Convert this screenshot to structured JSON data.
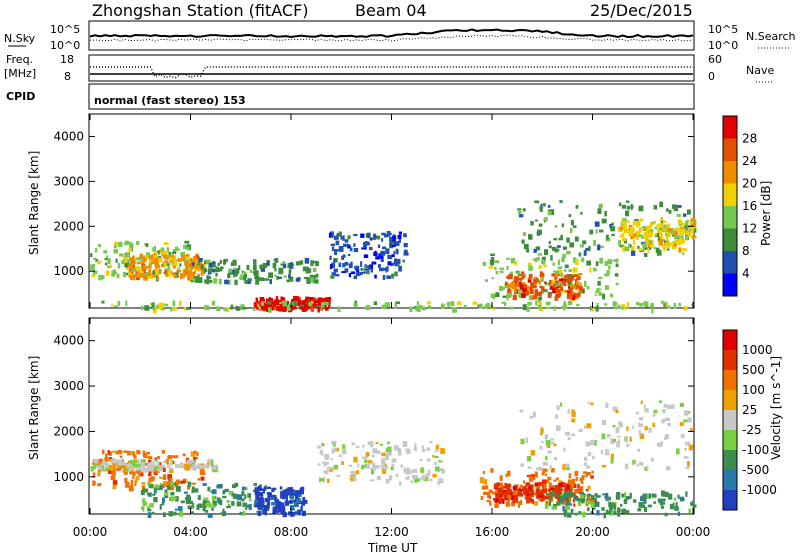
{
  "header": {
    "station": "Zhongshan Station (fitACF)",
    "beam": "Beam 04",
    "date": "25/Dec/2015"
  },
  "strip_labels": {
    "nsky": "N.Sky",
    "nsky_top": "10^5",
    "nsky_bottom": "10^0",
    "nsearch": "N.Search",
    "nsearch_top": "10^5",
    "nsearch_bottom": "10^0",
    "freq": "Freq.",
    "freq_unit": "[MHz]",
    "freq_top": "18",
    "freq_bottom": "8",
    "nave": "Nave",
    "nave_top": "60",
    "nave_bottom": "0",
    "cpid": "CPID",
    "cpid_value": "normal (fast stereo) 153"
  },
  "colors": {
    "power_scale": [
      "#0000ff",
      "#2050b0",
      "#3c8c3c",
      "#78c850",
      "#f0d000",
      "#f08c00",
      "#e05000",
      "#e00000"
    ],
    "velocity_scale": [
      "#2040c0",
      "#2878a8",
      "#3c8c50",
      "#78d040",
      "#c8c8c8",
      "#f0a000",
      "#f07000",
      "#e03000",
      "#e00000"
    ]
  },
  "chart_data": [
    {
      "type": "heatmap",
      "title": "",
      "ylabel": "Slant Range [km]",
      "xlabel": "Time UT",
      "ylim": [
        180,
        4500
      ],
      "xlim": [
        "00:00",
        "24:00"
      ],
      "x_ticks": [
        "00:00",
        "04:00",
        "08:00",
        "12:00",
        "16:00",
        "20:00",
        "00:00"
      ],
      "y_ticks": [
        1000,
        2000,
        3000,
        4000
      ],
      "colorbar": {
        "label": "Power [dB]",
        "ticks": [
          "4",
          "8",
          "12",
          "16",
          "20",
          "24",
          "28"
        ]
      },
      "blobs": [
        {
          "t0": 0.0,
          "t1": 4.0,
          "r0": 900,
          "r1": 1700,
          "level": 3
        },
        {
          "t0": 1.5,
          "t1": 4.5,
          "r0": 900,
          "r1": 1400,
          "level": 5
        },
        {
          "t0": 4.0,
          "t1": 9.0,
          "r0": 800,
          "r1": 1300,
          "level": 2
        },
        {
          "t0": 6.5,
          "t1": 9.5,
          "r0": 200,
          "r1": 450,
          "level": 7
        },
        {
          "t0": 9.5,
          "t1": 12.5,
          "r0": 900,
          "r1": 1900,
          "level": 1
        },
        {
          "t0": 15.5,
          "t1": 21.0,
          "r0": 400,
          "r1": 1400,
          "level": 3
        },
        {
          "t0": 16.5,
          "t1": 19.5,
          "r0": 450,
          "r1": 1000,
          "level": 6
        },
        {
          "t0": 17.0,
          "t1": 24.0,
          "r0": 1400,
          "r1": 2600,
          "level": 2
        },
        {
          "t0": 21.0,
          "t1": 24.0,
          "r0": 1500,
          "r1": 2200,
          "level": 4
        },
        {
          "t0": 0.0,
          "t1": 24.0,
          "r0": 180,
          "r1": 350,
          "level": 3
        }
      ]
    },
    {
      "type": "heatmap",
      "title": "",
      "ylabel": "Slant Range [km]",
      "xlabel": "Time UT",
      "ylim": [
        180,
        4500
      ],
      "xlim": [
        "00:00",
        "24:00"
      ],
      "x_ticks": [
        "00:00",
        "04:00",
        "08:00",
        "12:00",
        "16:00",
        "20:00",
        "00:00"
      ],
      "y_ticks": [
        1000,
        2000,
        3000,
        4000
      ],
      "colorbar": {
        "label": "Velocity [m s^-1]",
        "ticks": [
          "1000",
          "500",
          "100",
          "25",
          "-25",
          "-100",
          "-500",
          "-1000"
        ]
      },
      "blobs": [
        {
          "t0": 0.0,
          "t1": 4.5,
          "r0": 800,
          "r1": 1600,
          "level": 6
        },
        {
          "t0": 0.0,
          "t1": 5.0,
          "r0": 1200,
          "r1": 1400,
          "level": 4
        },
        {
          "t0": 2.0,
          "t1": 7.0,
          "r0": 200,
          "r1": 900,
          "level": 2
        },
        {
          "t0": 6.5,
          "t1": 8.5,
          "r0": 200,
          "r1": 800,
          "level": 0
        },
        {
          "t0": 9.0,
          "t1": 14.0,
          "r0": 900,
          "r1": 1800,
          "level": 4
        },
        {
          "t0": 15.5,
          "t1": 20.0,
          "r0": 400,
          "r1": 1200,
          "level": 6
        },
        {
          "t0": 16.0,
          "t1": 19.0,
          "r0": 500,
          "r1": 900,
          "level": 7
        },
        {
          "t0": 17.0,
          "t1": 24.0,
          "r0": 1200,
          "r1": 2700,
          "level": 4
        },
        {
          "t0": 18.0,
          "t1": 24.0,
          "r0": 200,
          "r1": 700,
          "level": 2
        }
      ]
    }
  ]
}
